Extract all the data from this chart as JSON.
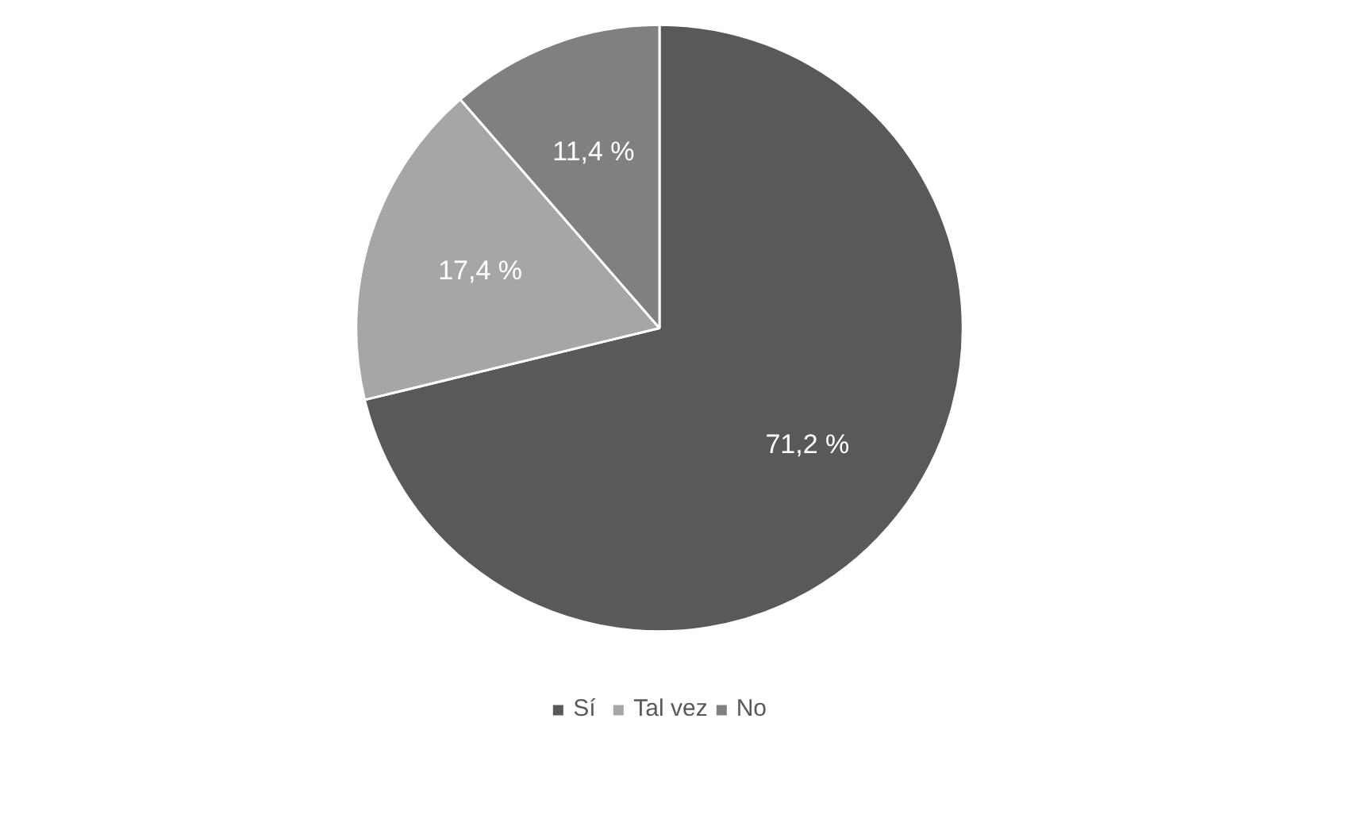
{
  "chart_data": {
    "type": "pie",
    "categories": [
      "Sí",
      "Tal vez",
      "No"
    ],
    "values": [
      71.2,
      17.4,
      11.4
    ],
    "colors": [
      "#595959",
      "#a6a6a6",
      "#808080"
    ],
    "value_labels": [
      "71,2 %",
      "17,4 %",
      "11,4 %"
    ],
    "legend": "bottom"
  }
}
